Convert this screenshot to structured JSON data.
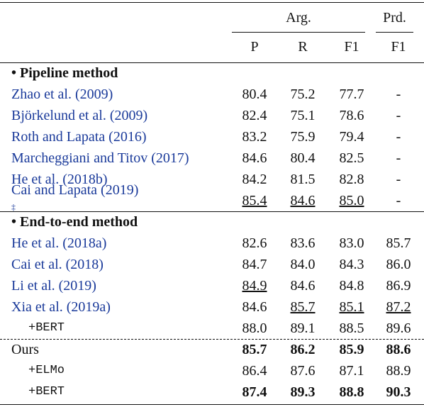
{
  "table": {
    "groups": [
      {
        "label": "Arg.",
        "columns": [
          "P",
          "R",
          "F1"
        ]
      },
      {
        "label": "Prd.",
        "columns": [
          "F1"
        ]
      }
    ],
    "sections": [
      {
        "title": "Pipeline method",
        "rule": "solid",
        "rows": [
          {
            "name": "Zhao et al. (2009)",
            "values": [
              "80.4",
              "75.2",
              "77.7",
              "-"
            ]
          },
          {
            "name": "Björkelund et al. (2009)",
            "values": [
              "82.4",
              "75.1",
              "78.6",
              "-"
            ]
          },
          {
            "name": "Roth and Lapata (2016)",
            "values": [
              "83.2",
              "75.9",
              "79.4",
              "-"
            ]
          },
          {
            "name": "Marcheggiani and Titov (2017)",
            "values": [
              "84.6",
              "80.4",
              "82.5",
              "-"
            ]
          },
          {
            "name": "He et al. (2018b)",
            "values": [
              "84.2",
              "81.5",
              "82.8",
              "-"
            ]
          },
          {
            "name": "Cai and Lapata (2019)",
            "mark": "‡",
            "values": [
              "85.4",
              "84.6",
              "85.0",
              "-"
            ],
            "underline": [
              0,
              1,
              2
            ]
          }
        ]
      },
      {
        "title": "End-to-end method",
        "rule": "solid",
        "rows": [
          {
            "name": "He et al. (2018a)",
            "values": [
              "82.6",
              "83.6",
              "83.0",
              "85.7"
            ]
          },
          {
            "name": "Cai et al. (2018)",
            "values": [
              "84.7",
              "84.0",
              "84.3",
              "86.0"
            ]
          },
          {
            "name": "Li et al. (2019)",
            "values": [
              "84.9",
              "84.6",
              "84.8",
              "86.9"
            ],
            "underline": [
              0
            ]
          },
          {
            "name": "Xia et al. (2019a)",
            "values": [
              "84.6",
              "85.7",
              "85.1",
              "87.2"
            ],
            "underline": [
              1,
              2,
              3
            ]
          },
          {
            "name": "+BERT",
            "mono": true,
            "values": [
              "88.0",
              "89.1",
              "88.5",
              "89.6"
            ]
          }
        ]
      },
      {
        "rule": "dashed",
        "rows": [
          {
            "name": "Ours",
            "values": [
              "85.7",
              "86.2",
              "85.9",
              "88.6"
            ],
            "bold": [
              0,
              1,
              2,
              3
            ]
          },
          {
            "name": "+ELMo",
            "mono": true,
            "values": [
              "86.4",
              "87.6",
              "87.1",
              "88.9"
            ]
          },
          {
            "name": "+BERT",
            "mono": true,
            "values": [
              "87.4",
              "89.3",
              "88.8",
              "90.3"
            ],
            "bold": [
              0,
              1,
              2,
              3
            ]
          }
        ]
      }
    ]
  }
}
